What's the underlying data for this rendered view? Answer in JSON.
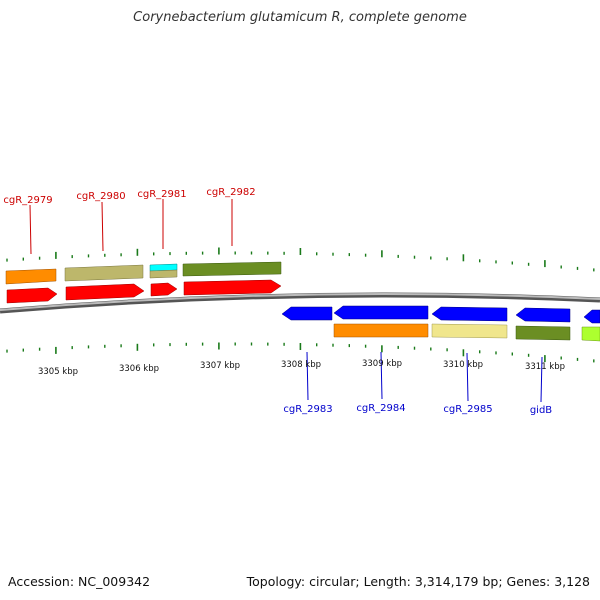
{
  "title": "Corynebacterium glutamicum R, complete genome",
  "footer": {
    "accession": "Accession: NC_009342",
    "topology": "Topology: circular; Length: 3,314,179 bp; Genes: 3,128"
  },
  "colors": {
    "forward_label": "#cc0000",
    "reverse_label": "#0000cc",
    "tick": "#1a7a1a",
    "backbone": "#808080",
    "red_arrow": "#ff0000",
    "blue_arrow": "#0000ff",
    "orange": "#ff8c00",
    "khaki": "#bdb76b",
    "cyan": "#00ffff",
    "olive": "#6b8e23",
    "wheat": "#f0e68c",
    "lime": "#adff2f"
  },
  "kbp_labels": [
    "3305 kbp",
    "3306 kbp",
    "3307 kbp",
    "3308 kbp",
    "3309 kbp",
    "3310 kbp",
    "3311 kbp"
  ],
  "forward_genes": [
    "cgR_2979",
    "cgR_2980",
    "cgR_2981",
    "cgR_2982"
  ],
  "reverse_genes": [
    "cgR_2983",
    "cgR_2984",
    "cgR_2985",
    "gidB"
  ]
}
